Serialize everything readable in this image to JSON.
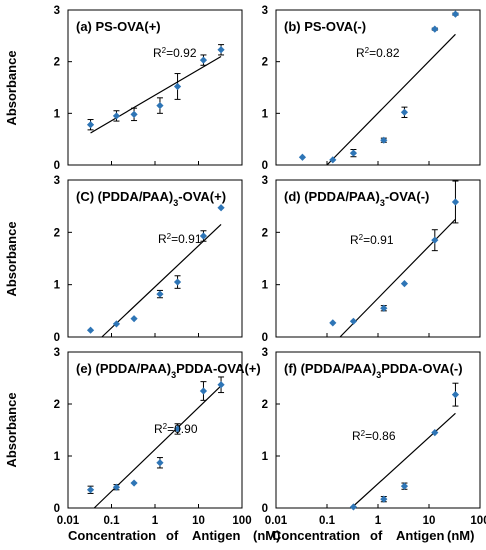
{
  "figure": {
    "ylabel": "Absorbance",
    "xlabel": "Concentration of Antigen (nM)",
    "xlabel_words": [
      "Concentration",
      "of",
      "Antigen",
      "(nM)"
    ],
    "x_tick_labels": [
      "0.01",
      "0.1",
      "1",
      "10",
      "100"
    ],
    "y_tick_labels": [
      "0",
      "1",
      "2",
      "3"
    ]
  },
  "colors": {
    "marker": "#2e75b6",
    "fit_line": "#000000",
    "frame": "#000000",
    "error_bar": "#000000"
  },
  "chart_data": [
    {
      "type": "scatter",
      "title": "(a) PS-OVA(+)",
      "r2": "R²=0.92",
      "xscale": "log",
      "xlim": [
        0.01,
        100
      ],
      "ylim": [
        0,
        3
      ],
      "x": [
        0.033,
        0.13,
        0.33,
        1.3,
        3.3,
        13,
        33
      ],
      "y": [
        0.78,
        0.95,
        0.98,
        1.15,
        1.52,
        2.03,
        2.23
      ],
      "y_err": [
        0.1,
        0.1,
        0.12,
        0.15,
        0.25,
        0.1,
        0.1
      ],
      "fit": {
        "x": [
          0.033,
          33
        ],
        "y": [
          0.62,
          2.1
        ]
      }
    },
    {
      "type": "scatter",
      "title": "(b) PS-OVA(-)",
      "r2": "R²=0.82",
      "xscale": "log",
      "xlim": [
        0.01,
        100
      ],
      "ylim": [
        0,
        3
      ],
      "x": [
        0.033,
        0.13,
        0.33,
        1.3,
        3.3,
        13,
        33
      ],
      "y": [
        0.15,
        0.1,
        0.23,
        0.48,
        1.02,
        2.63,
        2.92
      ],
      "y_err": [
        0,
        0,
        0.07,
        0.04,
        0.1,
        0.02,
        0.02
      ],
      "fit": {
        "x": [
          0.1,
          33
        ],
        "y": [
          0.0,
          2.53
        ]
      }
    },
    {
      "type": "scatter",
      "title": "(C) (PDDA/PAA)₃-OVA(+)",
      "r2": "R²=0.91",
      "xscale": "log",
      "xlim": [
        0.01,
        100
      ],
      "ylim": [
        0,
        3
      ],
      "x": [
        0.033,
        0.13,
        0.33,
        1.3,
        3.3,
        13,
        33
      ],
      "y": [
        0.13,
        0.25,
        0.35,
        0.82,
        1.05,
        1.93,
        2.47
      ],
      "y_err": [
        0,
        0,
        0,
        0.07,
        0.12,
        0.1,
        0
      ],
      "fit": {
        "x": [
          0.06,
          33
        ],
        "y": [
          0.0,
          2.15
        ]
      }
    },
    {
      "type": "scatter",
      "title": "(d) (PDDA/PAA)₃-OVA(-)",
      "r2": "R²=0.91",
      "xscale": "log",
      "xlim": [
        0.01,
        100
      ],
      "ylim": [
        0,
        3
      ],
      "x": [
        0.13,
        0.33,
        1.3,
        3.3,
        13,
        33
      ],
      "y": [
        0.27,
        0.3,
        0.55,
        1.02,
        1.85,
        2.58
      ],
      "y_err": [
        0,
        0,
        0.05,
        0,
        0.2,
        0.4
      ],
      "fit": {
        "x": [
          0.18,
          33
        ],
        "y": [
          0.0,
          2.25
        ]
      }
    },
    {
      "type": "scatter",
      "title": "(e) (PDDA/PAA)₃PDDA-OVA(+)",
      "r2": "R²=0.90",
      "xscale": "log",
      "xlim": [
        0.01,
        100
      ],
      "ylim": [
        0,
        3
      ],
      "x": [
        0.033,
        0.13,
        0.33,
        1.3,
        3.3,
        13,
        33
      ],
      "y": [
        0.35,
        0.4,
        0.48,
        0.87,
        1.52,
        2.25,
        2.37
      ],
      "y_err": [
        0.07,
        0.05,
        0,
        0.1,
        0.1,
        0.18,
        0.15
      ],
      "fit": {
        "x": [
          0.04,
          33
        ],
        "y": [
          0.0,
          2.35
        ]
      }
    },
    {
      "type": "scatter",
      "title": "(f) (PDDA/PAA)₃PDDA-OVA(-)",
      "r2": "R²=0.86",
      "xscale": "log",
      "xlim": [
        0.01,
        100
      ],
      "ylim": [
        0,
        3
      ],
      "x": [
        0.33,
        1.3,
        3.3,
        13,
        33
      ],
      "y": [
        0.02,
        0.17,
        0.42,
        1.45,
        2.18
      ],
      "y_err": [
        0,
        0.05,
        0.06,
        0,
        0.22
      ],
      "fit": {
        "x": [
          0.3,
          33
        ],
        "y": [
          0.0,
          1.82
        ]
      }
    }
  ]
}
